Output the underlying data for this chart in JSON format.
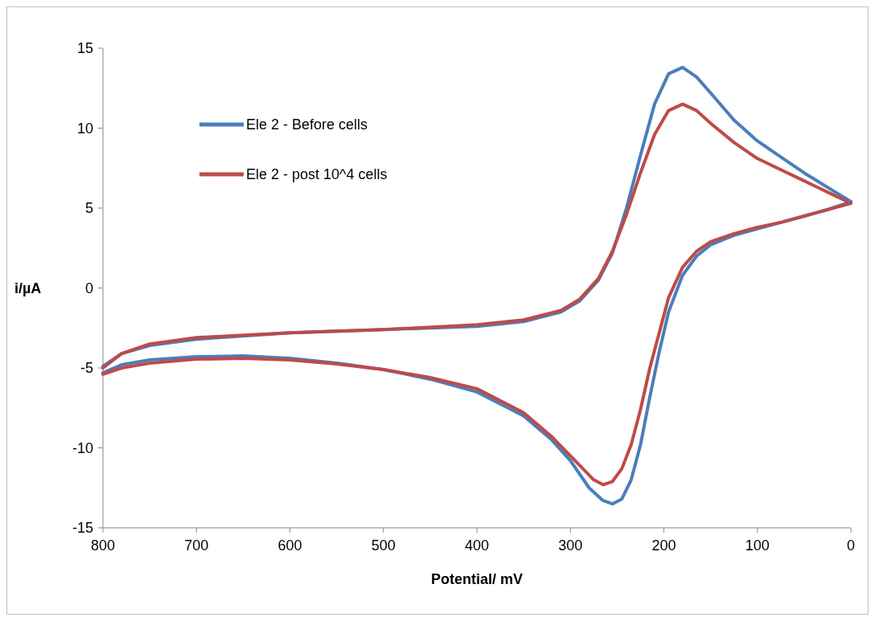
{
  "chart_data": {
    "type": "line",
    "xlabel": "Potential/ mV",
    "ylabel": "i/µA",
    "xlim": [
      800,
      0
    ],
    "xticks": [
      800,
      700,
      600,
      500,
      400,
      300,
      200,
      100,
      0
    ],
    "ylim": [
      -15,
      15
    ],
    "yticks": [
      -15,
      -10,
      -5,
      0,
      5,
      10,
      15
    ],
    "grid": false,
    "legend": "top left",
    "marker": "none",
    "line_style": "solid",
    "series": [
      {
        "name": "Ele 2 - Before cells",
        "color": "#4a7ebb",
        "x": [
          0,
          25,
          50,
          75,
          100,
          125,
          150,
          165,
          180,
          195,
          210,
          225,
          240,
          255,
          270,
          290,
          310,
          350,
          400,
          500,
          600,
          700,
          750,
          780,
          800
        ],
        "values": [
          5.4,
          6.3,
          7.2,
          8.2,
          9.2,
          10.5,
          12.2,
          13.2,
          13.8,
          13.4,
          11.5,
          8.3,
          5.0,
          2.2,
          0.5,
          -0.8,
          -1.5,
          -2.1,
          -2.4,
          -2.6,
          -2.8,
          -3.2,
          -3.6,
          -4.1,
          -4.9
        ]
      },
      {
        "name": "Ele 2 - post 10^4 cells",
        "color": "#be4b48",
        "x": [
          0,
          25,
          50,
          75,
          100,
          125,
          150,
          165,
          180,
          195,
          210,
          225,
          240,
          255,
          270,
          290,
          310,
          350,
          400,
          500,
          600,
          700,
          750,
          780,
          800
        ],
        "values": [
          5.3,
          6.0,
          6.7,
          7.4,
          8.1,
          9.1,
          10.3,
          11.1,
          11.5,
          11.1,
          9.6,
          7.2,
          4.6,
          2.3,
          0.6,
          -0.7,
          -1.4,
          -2.0,
          -2.3,
          -2.6,
          -2.8,
          -3.1,
          -3.5,
          -4.1,
          -5.0
        ]
      },
      {
        "color": "#4a7ebb",
        "x": [
          800,
          780,
          750,
          700,
          650,
          600,
          550,
          500,
          450,
          400,
          350,
          320,
          300,
          280,
          265,
          255,
          245,
          235,
          225,
          215,
          205,
          195,
          180,
          165,
          150,
          125,
          100,
          75,
          50,
          25,
          0
        ],
        "values": [
          -5.3,
          -4.8,
          -4.5,
          -4.3,
          -4.25,
          -4.4,
          -4.7,
          -5.1,
          -5.7,
          -6.5,
          -8.0,
          -9.5,
          -10.8,
          -12.5,
          -13.3,
          -13.5,
          -13.2,
          -12.0,
          -9.8,
          -6.8,
          -4.0,
          -1.5,
          0.8,
          2.0,
          2.7,
          3.3,
          3.7,
          4.1,
          4.5,
          4.9,
          5.4
        ]
      },
      {
        "color": "#be4b48",
        "x": [
          800,
          780,
          750,
          700,
          650,
          600,
          550,
          500,
          450,
          400,
          350,
          320,
          300,
          285,
          275,
          265,
          255,
          245,
          235,
          225,
          215,
          205,
          195,
          180,
          165,
          150,
          125,
          100,
          75,
          50,
          25,
          0
        ],
        "values": [
          -5.4,
          -5.0,
          -4.7,
          -4.45,
          -4.4,
          -4.5,
          -4.75,
          -5.1,
          -5.6,
          -6.3,
          -7.8,
          -9.3,
          -10.5,
          -11.4,
          -12.0,
          -12.3,
          -12.1,
          -11.3,
          -9.8,
          -7.6,
          -5.0,
          -2.8,
          -0.6,
          1.3,
          2.3,
          2.9,
          3.4,
          3.8,
          4.1,
          4.5,
          4.9,
          5.3
        ]
      }
    ]
  }
}
